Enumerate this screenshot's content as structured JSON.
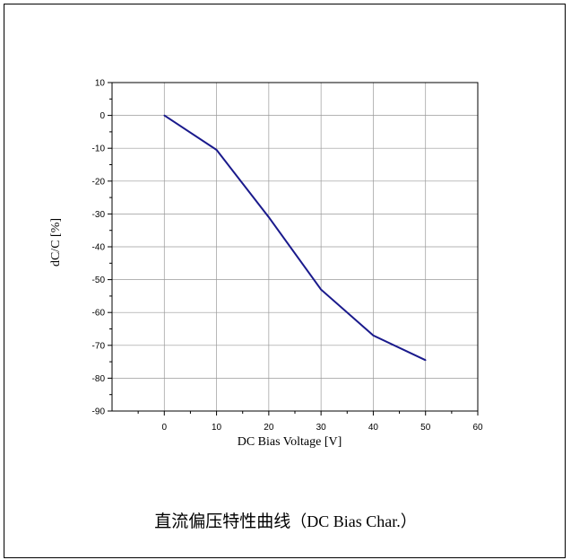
{
  "chart_data": {
    "type": "line",
    "title": "",
    "xlabel": "DC  Bias Voltage [V]",
    "ylabel": "dC/C [%]",
    "xlim": [
      -10,
      60
    ],
    "ylim": [
      -90,
      10
    ],
    "xticks": [
      0,
      10,
      20,
      30,
      40,
      50,
      60
    ],
    "yticks": [
      10,
      0,
      -10,
      -20,
      -30,
      -40,
      -50,
      -60,
      -70,
      -80,
      -90
    ],
    "grid": true,
    "series": [
      {
        "color": "#1a1a8c",
        "x": [
          0,
          10,
          20,
          30,
          40,
          50
        ],
        "y": [
          0,
          -10.5,
          -31,
          -53,
          -67,
          -74.5
        ]
      }
    ]
  },
  "caption": {
    "cjk": "直流偏压特性曲线",
    "latin": "（DC Bias Char.）"
  }
}
